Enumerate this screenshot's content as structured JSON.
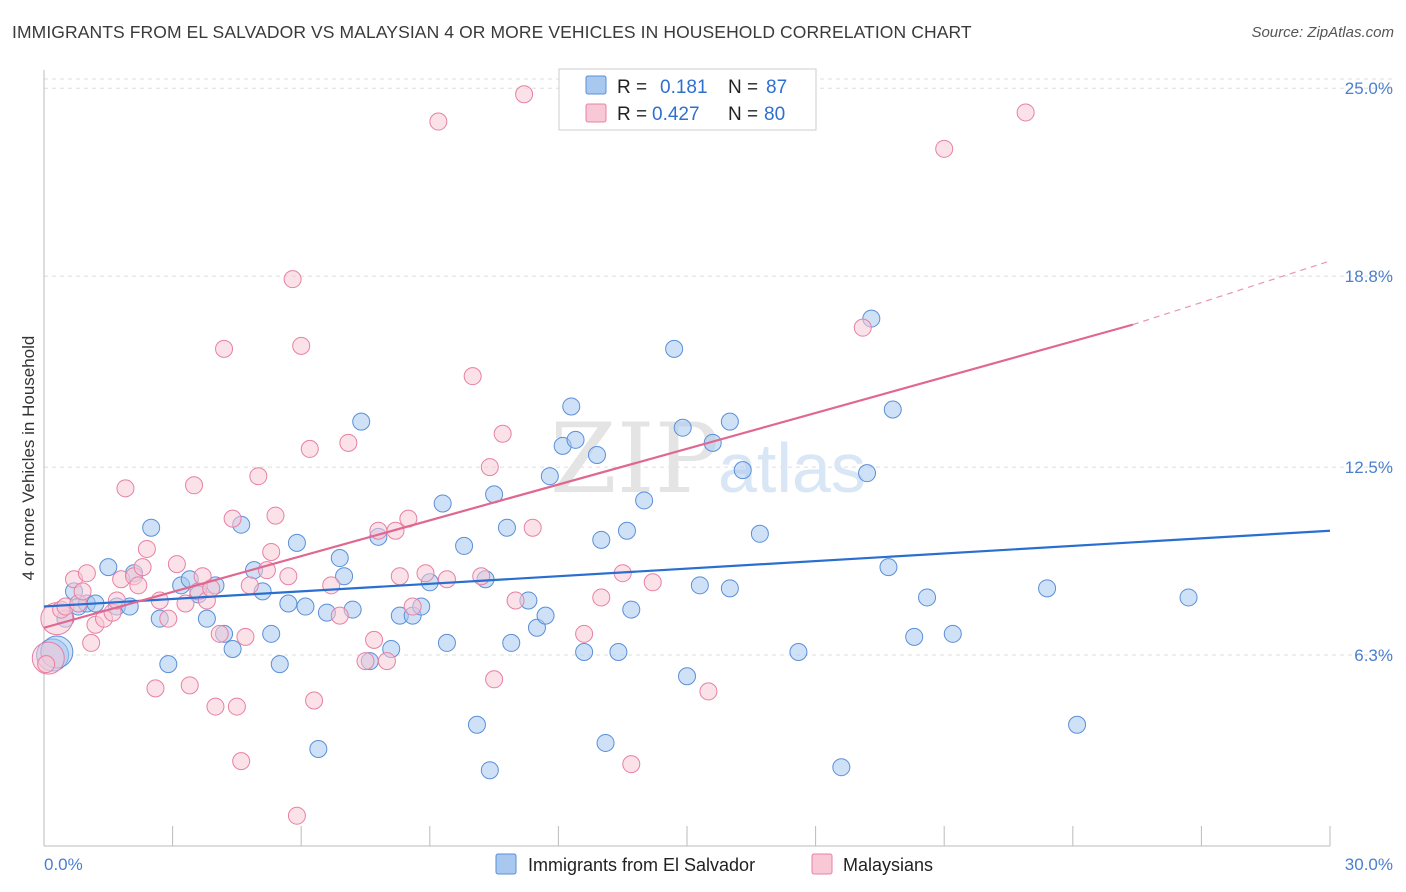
{
  "title": "IMMIGRANTS FROM EL SALVADOR VS MALAYSIAN 4 OR MORE VEHICLES IN HOUSEHOLD CORRELATION CHART",
  "source": "Source: ZipAtlas.com",
  "watermark": {
    "zip": "ZIP",
    "atlas": "atlas"
  },
  "legend": {
    "r_label": "R =",
    "n_label": "N =",
    "entries": [
      {
        "r": "0.181",
        "n": "87",
        "color": "#a8c8f0",
        "stroke": "#5a8fd8"
      },
      {
        "r": "0.427",
        "n": "80",
        "color": "#f8c0d0",
        "stroke": "#e07098"
      }
    ]
  },
  "colors": {
    "blue_fill": "#a8c8f0",
    "blue_stroke": "#5a8fd8",
    "blue_line": "#2a6fd0",
    "pink_fill": "#f8c8d6",
    "pink_stroke": "#e880a4",
    "pink_line": "#e06890",
    "axis_text": "#4a7fd0",
    "grid": "#dddddd"
  },
  "chart_data": {
    "type": "scatter",
    "title": "IMMIGRANTS FROM EL SALVADOR VS MALAYSIAN 4 OR MORE VEHICLES IN HOUSEHOLD CORRELATION CHART",
    "xlabel": "",
    "ylabel": "4 or more Vehicles in Household",
    "xlim": [
      0,
      30
    ],
    "ylim": [
      0,
      25.6
    ],
    "x_tick_labels": [
      "0.0%",
      "30.0%"
    ],
    "y_ticks": [
      6.3,
      12.5,
      18.8,
      25.0
    ],
    "y_tick_labels": [
      "6.3%",
      "12.5%",
      "18.8%",
      "25.0%"
    ],
    "grid": "horizontal dashed",
    "legend_position": "top-center",
    "series": [
      {
        "name": "Immigrants from El Salvador",
        "r": 0.181,
        "n": 87,
        "trend": {
          "x": [
            0,
            30
          ],
          "y": [
            7.9,
            10.4
          ]
        },
        "points": [
          [
            0.2,
            6.3
          ],
          [
            0.3,
            6.4
          ],
          [
            0.5,
            7.5
          ],
          [
            0.7,
            8.4
          ],
          [
            0.8,
            7.9
          ],
          [
            1.0,
            8.0
          ],
          [
            1.2,
            8.0
          ],
          [
            1.5,
            9.2
          ],
          [
            1.7,
            7.9
          ],
          [
            2.0,
            7.9
          ],
          [
            2.1,
            9.0
          ],
          [
            2.5,
            10.5
          ],
          [
            2.7,
            7.5
          ],
          [
            2.9,
            6.0
          ],
          [
            3.2,
            8.6
          ],
          [
            3.4,
            8.8
          ],
          [
            3.6,
            8.3
          ],
          [
            3.8,
            7.5
          ],
          [
            4.0,
            8.6
          ],
          [
            4.2,
            7.0
          ],
          [
            4.4,
            6.5
          ],
          [
            4.6,
            10.6
          ],
          [
            4.9,
            9.1
          ],
          [
            5.1,
            8.4
          ],
          [
            5.3,
            7.0
          ],
          [
            5.5,
            6.0
          ],
          [
            5.7,
            8.0
          ],
          [
            5.9,
            10.0
          ],
          [
            6.1,
            7.9
          ],
          [
            6.4,
            3.2
          ],
          [
            6.6,
            7.7
          ],
          [
            6.9,
            9.5
          ],
          [
            7.0,
            8.9
          ],
          [
            7.2,
            7.8
          ],
          [
            7.4,
            14.0
          ],
          [
            7.6,
            6.1
          ],
          [
            7.8,
            10.2
          ],
          [
            8.1,
            6.5
          ],
          [
            8.3,
            7.6
          ],
          [
            8.6,
            7.6
          ],
          [
            8.8,
            7.9
          ],
          [
            9.0,
            8.7
          ],
          [
            9.3,
            11.3
          ],
          [
            9.4,
            6.7
          ],
          [
            9.8,
            9.9
          ],
          [
            10.1,
            4.0
          ],
          [
            10.3,
            8.8
          ],
          [
            10.5,
            11.6
          ],
          [
            10.4,
            2.5
          ],
          [
            10.8,
            10.5
          ],
          [
            10.9,
            6.7
          ],
          [
            11.3,
            8.1
          ],
          [
            11.5,
            7.2
          ],
          [
            11.8,
            12.2
          ],
          [
            11.7,
            7.6
          ],
          [
            12.1,
            13.2
          ],
          [
            12.3,
            14.5
          ],
          [
            12.4,
            13.4
          ],
          [
            12.6,
            6.4
          ],
          [
            12.9,
            12.9
          ],
          [
            13.0,
            10.1
          ],
          [
            13.1,
            3.4
          ],
          [
            13.4,
            6.4
          ],
          [
            13.6,
            10.4
          ],
          [
            13.7,
            7.8
          ],
          [
            14.0,
            11.4
          ],
          [
            14.7,
            16.4
          ],
          [
            14.9,
            13.8
          ],
          [
            15.0,
            5.6
          ],
          [
            15.3,
            8.6
          ],
          [
            15.6,
            13.3
          ],
          [
            16.0,
            14.0
          ],
          [
            16.0,
            8.5
          ],
          [
            16.3,
            12.4
          ],
          [
            16.7,
            10.3
          ],
          [
            17.6,
            6.4
          ],
          [
            18.6,
            2.6
          ],
          [
            19.2,
            12.3
          ],
          [
            19.3,
            17.4
          ],
          [
            19.7,
            9.2
          ],
          [
            19.8,
            14.4
          ],
          [
            20.3,
            6.9
          ],
          [
            20.6,
            8.2
          ],
          [
            21.2,
            7.0
          ],
          [
            23.4,
            8.5
          ],
          [
            24.1,
            4.0
          ],
          [
            26.7,
            8.2
          ]
        ]
      },
      {
        "name": "Malaysians",
        "r": 0.427,
        "n": 80,
        "trend": {
          "x": [
            0,
            25.4
          ],
          "y": [
            7.2,
            17.2
          ]
        },
        "trend_dashed": {
          "x": [
            25.4,
            30
          ],
          "y": [
            17.2,
            19.3
          ]
        },
        "points": [
          [
            0.1,
            6.2
          ],
          [
            0.3,
            7.5
          ],
          [
            0.4,
            7.8
          ],
          [
            0.5,
            7.9
          ],
          [
            0.7,
            8.8
          ],
          [
            0.8,
            8.0
          ],
          [
            0.9,
            8.4
          ],
          [
            1.1,
            6.7
          ],
          [
            1.2,
            7.3
          ],
          [
            1.4,
            7.5
          ],
          [
            1.6,
            7.7
          ],
          [
            1.7,
            8.1
          ],
          [
            1.8,
            8.8
          ],
          [
            1.9,
            11.8
          ],
          [
            2.1,
            8.9
          ],
          [
            2.3,
            9.2
          ],
          [
            2.4,
            9.8
          ],
          [
            2.6,
            5.2
          ],
          [
            2.7,
            8.1
          ],
          [
            2.9,
            7.5
          ],
          [
            3.1,
            9.3
          ],
          [
            3.3,
            8.0
          ],
          [
            3.4,
            5.3
          ],
          [
            3.5,
            11.9
          ],
          [
            3.6,
            8.4
          ],
          [
            3.7,
            8.9
          ],
          [
            3.8,
            8.1
          ],
          [
            3.9,
            8.5
          ],
          [
            4.0,
            4.6
          ],
          [
            4.1,
            7.0
          ],
          [
            4.2,
            16.4
          ],
          [
            4.4,
            10.8
          ],
          [
            4.5,
            4.6
          ],
          [
            4.6,
            2.8
          ],
          [
            4.7,
            6.9
          ],
          [
            4.8,
            8.6
          ],
          [
            5.0,
            12.2
          ],
          [
            5.2,
            9.1
          ],
          [
            5.3,
            9.7
          ],
          [
            5.4,
            10.9
          ],
          [
            5.7,
            8.9
          ],
          [
            5.8,
            18.7
          ],
          [
            5.9,
            1.0
          ],
          [
            6.0,
            16.5
          ],
          [
            6.2,
            13.1
          ],
          [
            6.3,
            4.8
          ],
          [
            6.7,
            8.6
          ],
          [
            6.9,
            7.6
          ],
          [
            7.1,
            13.3
          ],
          [
            7.5,
            6.1
          ],
          [
            7.7,
            6.8
          ],
          [
            7.8,
            10.4
          ],
          [
            8.0,
            6.1
          ],
          [
            8.2,
            10.4
          ],
          [
            8.3,
            8.9
          ],
          [
            8.5,
            10.8
          ],
          [
            8.6,
            7.9
          ],
          [
            8.9,
            9.0
          ],
          [
            9.2,
            23.9
          ],
          [
            9.4,
            8.8
          ],
          [
            10.0,
            15.5
          ],
          [
            10.2,
            8.9
          ],
          [
            10.4,
            12.5
          ],
          [
            10.5,
            5.5
          ],
          [
            10.7,
            13.6
          ],
          [
            11.0,
            8.1
          ],
          [
            11.2,
            24.8
          ],
          [
            11.4,
            10.5
          ],
          [
            12.6,
            7.0
          ],
          [
            13.0,
            8.2
          ],
          [
            13.5,
            9.0
          ],
          [
            13.7,
            2.7
          ],
          [
            14.2,
            8.7
          ],
          [
            15.5,
            5.1
          ],
          [
            19.1,
            17.1
          ],
          [
            21.0,
            23.0
          ],
          [
            22.9,
            24.2
          ],
          [
            0.05,
            6.0
          ],
          [
            1.0,
            9.0
          ],
          [
            2.2,
            8.6
          ]
        ]
      }
    ]
  },
  "bottom_legend": [
    {
      "label": "Immigrants from El Salvador"
    },
    {
      "label": "Malaysians"
    }
  ]
}
